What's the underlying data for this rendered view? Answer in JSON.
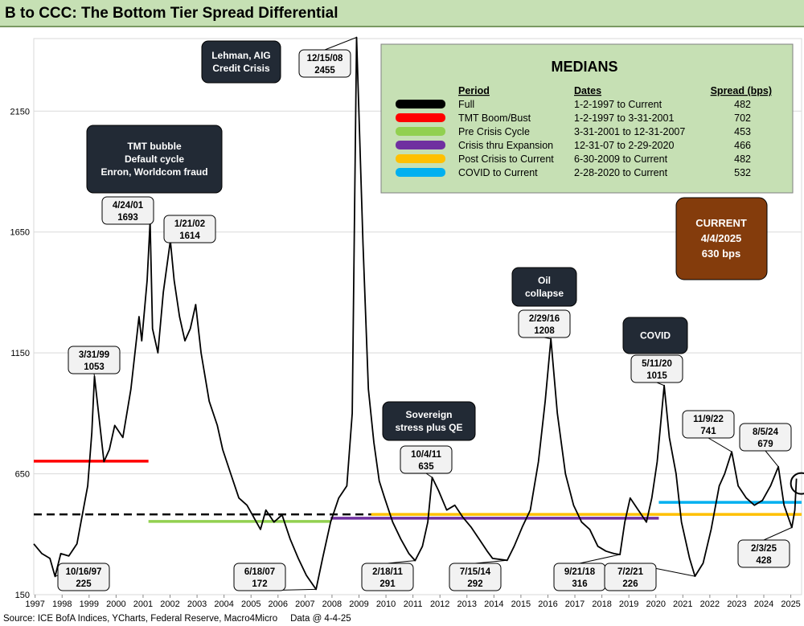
{
  "title": "B to CCC: The Bottom Tier Spread Differential",
  "source": "Source: ICE BofA Indices, YCharts, Federal Reserve, Macro4Micro",
  "data_date": "Data @ 4-4-25",
  "chart_data": {
    "type": "line",
    "title": "B to CCC: The Bottom Tier Spread Differential",
    "xlabel": "",
    "ylabel": "",
    "x_ticks": [
      "1997",
      "1998",
      "1999",
      "2000",
      "2001",
      "2002",
      "2003",
      "2004",
      "2005",
      "2006",
      "2007",
      "2008",
      "2009",
      "2010",
      "2011",
      "2012",
      "2013",
      "2014",
      "2015",
      "2016",
      "2017",
      "2018",
      "2019",
      "2020",
      "2021",
      "2022",
      "2023",
      "2024",
      "2025"
    ],
    "y_ticks": [
      150,
      650,
      1150,
      1650,
      2150
    ],
    "xlim": [
      1997.0,
      2025.45
    ],
    "ylim": [
      150,
      2450
    ],
    "grid": "horizontal",
    "series": [
      {
        "values_xy": [
          [
            1997.0,
            360
          ],
          [
            1997.3,
            320
          ],
          [
            1997.6,
            300
          ],
          [
            1997.79,
            225
          ],
          [
            1998.0,
            320
          ],
          [
            1998.3,
            310
          ],
          [
            1998.6,
            360
          ],
          [
            1998.8,
            480
          ],
          [
            1999.0,
            600
          ],
          [
            1999.15,
            820
          ],
          [
            1999.25,
            1053
          ],
          [
            1999.4,
            900
          ],
          [
            1999.6,
            700
          ],
          [
            1999.8,
            750
          ],
          [
            2000.0,
            850
          ],
          [
            2000.3,
            800
          ],
          [
            2000.6,
            1000
          ],
          [
            2000.9,
            1300
          ],
          [
            2001.0,
            1200
          ],
          [
            2001.2,
            1450
          ],
          [
            2001.31,
            1693
          ],
          [
            2001.4,
            1250
          ],
          [
            2001.6,
            1150
          ],
          [
            2001.8,
            1400
          ],
          [
            2002.06,
            1614
          ],
          [
            2002.2,
            1450
          ],
          [
            2002.4,
            1300
          ],
          [
            2002.6,
            1200
          ],
          [
            2002.8,
            1250
          ],
          [
            2003.0,
            1350
          ],
          [
            2003.2,
            1150
          ],
          [
            2003.5,
            950
          ],
          [
            2003.8,
            850
          ],
          [
            2004.0,
            750
          ],
          [
            2004.3,
            650
          ],
          [
            2004.6,
            550
          ],
          [
            2004.9,
            520
          ],
          [
            2005.1,
            480
          ],
          [
            2005.4,
            420
          ],
          [
            2005.6,
            500
          ],
          [
            2005.9,
            450
          ],
          [
            2006.2,
            480
          ],
          [
            2006.5,
            380
          ],
          [
            2006.8,
            300
          ],
          [
            2007.1,
            230
          ],
          [
            2007.46,
            172
          ],
          [
            2007.7,
            300
          ],
          [
            2008.0,
            450
          ],
          [
            2008.3,
            550
          ],
          [
            2008.6,
            600
          ],
          [
            2008.8,
            900
          ],
          [
            2008.96,
            2455
          ],
          [
            2009.2,
            1600
          ],
          [
            2009.4,
            1000
          ],
          [
            2009.6,
            780
          ],
          [
            2009.8,
            620
          ],
          [
            2010.0,
            550
          ],
          [
            2010.3,
            450
          ],
          [
            2010.6,
            380
          ],
          [
            2010.9,
            320
          ],
          [
            2011.13,
            291
          ],
          [
            2011.4,
            350
          ],
          [
            2011.6,
            450
          ],
          [
            2011.76,
            635
          ],
          [
            2012.0,
            580
          ],
          [
            2012.3,
            500
          ],
          [
            2012.6,
            520
          ],
          [
            2012.9,
            470
          ],
          [
            2013.2,
            430
          ],
          [
            2013.5,
            380
          ],
          [
            2013.8,
            330
          ],
          [
            2014.0,
            300
          ],
          [
            2014.54,
            292
          ],
          [
            2014.8,
            350
          ],
          [
            2015.1,
            430
          ],
          [
            2015.4,
            500
          ],
          [
            2015.7,
            700
          ],
          [
            2015.95,
            950
          ],
          [
            2016.16,
            1208
          ],
          [
            2016.4,
            900
          ],
          [
            2016.7,
            650
          ],
          [
            2017.0,
            520
          ],
          [
            2017.3,
            450
          ],
          [
            2017.6,
            420
          ],
          [
            2017.9,
            350
          ],
          [
            2018.2,
            330
          ],
          [
            2018.5,
            320
          ],
          [
            2018.72,
            316
          ],
          [
            2018.9,
            450
          ],
          [
            2019.1,
            550
          ],
          [
            2019.4,
            500
          ],
          [
            2019.7,
            450
          ],
          [
            2019.9,
            550
          ],
          [
            2020.1,
            700
          ],
          [
            2020.36,
            1015
          ],
          [
            2020.55,
            800
          ],
          [
            2020.8,
            650
          ],
          [
            2021.0,
            450
          ],
          [
            2021.3,
            300
          ],
          [
            2021.5,
            226
          ],
          [
            2021.8,
            280
          ],
          [
            2022.1,
            420
          ],
          [
            2022.4,
            600
          ],
          [
            2022.6,
            650
          ],
          [
            2022.86,
            741
          ],
          [
            2023.1,
            600
          ],
          [
            2023.4,
            550
          ],
          [
            2023.7,
            520
          ],
          [
            2024.0,
            540
          ],
          [
            2024.3,
            600
          ],
          [
            2024.59,
            679
          ],
          [
            2024.8,
            520
          ],
          [
            2025.09,
            428
          ],
          [
            2025.2,
            500
          ],
          [
            2025.26,
            630
          ]
        ]
      }
    ],
    "medians": {
      "title": "MEDIANS",
      "headers": [
        "Period",
        "Dates",
        "Spread (bps)"
      ],
      "rows": [
        {
          "period": "Full",
          "dates": "1-2-1997 to Current",
          "spread": "482",
          "color": "#000000",
          "dashed": true,
          "x_range": [
            1997.0,
            2025.45
          ],
          "value": 482
        },
        {
          "period": "TMT Boom/Bust",
          "dates": "1-2-1997 to 3-31-2001",
          "spread": "702",
          "color": "#ff0000",
          "dashed": false,
          "x_range": [
            1997.0,
            2001.25
          ],
          "value": 702
        },
        {
          "period": "Pre Crisis Cycle",
          "dates": "3-31-2001 to 12-31-2007",
          "spread": "453",
          "color": "#92d050",
          "dashed": false,
          "x_range": [
            2001.25,
            2008.0
          ],
          "value": 453
        },
        {
          "period": "Crisis thru Expansion",
          "dates": "12-31-07 to 2-29-2020",
          "spread": "466",
          "color": "#7030a0",
          "dashed": false,
          "x_range": [
            2008.0,
            2020.16
          ],
          "value": 466
        },
        {
          "period": "Post Crisis to Current",
          "dates": "6-30-2009 to Current",
          "spread": "482",
          "color": "#ffc000",
          "dashed": false,
          "x_range": [
            2009.5,
            2025.45
          ],
          "value": 482
        },
        {
          "period": "COVID to Current",
          "dates": "2-28-2020 to Current",
          "spread": "532",
          "color": "#00b0f0",
          "dashed": false,
          "x_range": [
            2020.16,
            2025.45
          ],
          "value": 532
        }
      ]
    },
    "current": {
      "lines": [
        "CURRENT",
        "4/4/2025",
        "630 bps"
      ],
      "x": 2025.26,
      "value": 630
    },
    "point_labels": [
      {
        "date": "10/16/97",
        "value": "225",
        "x": 1997.79,
        "y": 225
      },
      {
        "date": "3/31/99",
        "value": "1053",
        "x": 1999.25,
        "y": 1053
      },
      {
        "date": "4/24/01",
        "value": "1693",
        "x": 2001.31,
        "y": 1693
      },
      {
        "date": "1/21/02",
        "value": "1614",
        "x": 2002.06,
        "y": 1614
      },
      {
        "date": "6/18/07",
        "value": "172",
        "x": 2007.46,
        "y": 172
      },
      {
        "date": "12/15/08",
        "value": "2455",
        "x": 2008.96,
        "y": 2455
      },
      {
        "date": "2/18/11",
        "value": "291",
        "x": 2011.13,
        "y": 291
      },
      {
        "date": "10/4/11",
        "value": "635",
        "x": 2011.76,
        "y": 635
      },
      {
        "date": "7/15/14",
        "value": "292",
        "x": 2014.54,
        "y": 292
      },
      {
        "date": "2/29/16",
        "value": "1208",
        "x": 2016.16,
        "y": 1208
      },
      {
        "date": "9/21/18",
        "value": "316",
        "x": 2018.72,
        "y": 316
      },
      {
        "date": "5/11/20",
        "value": "1015",
        "x": 2020.36,
        "y": 1015
      },
      {
        "date": "7/2/21",
        "value": "226",
        "x": 2021.5,
        "y": 226
      },
      {
        "date": "11/9/22",
        "value": "741",
        "x": 2022.86,
        "y": 741
      },
      {
        "date": "8/5/24",
        "value": "679",
        "x": 2024.59,
        "y": 679
      },
      {
        "date": "2/3/25",
        "value": "428",
        "x": 2025.09,
        "y": 428
      }
    ],
    "event_labels": [
      {
        "lines": [
          "Lehman, AIG",
          "Credit Crisis"
        ]
      },
      {
        "lines": [
          "TMT bubble",
          "Default cycle",
          "Enron, Worldcom fraud"
        ]
      },
      {
        "lines": [
          "Oil",
          "collapse"
        ]
      },
      {
        "lines": [
          "COVID"
        ]
      },
      {
        "lines": [
          "Sovereign",
          "stress plus QE"
        ]
      }
    ]
  }
}
